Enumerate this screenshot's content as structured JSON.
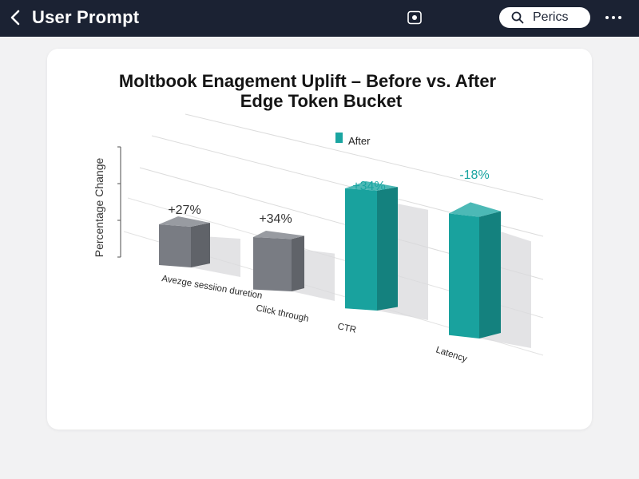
{
  "topbar": {
    "title": "User Prompt",
    "search_label": "Perics",
    "back_icon": "chevron-left-icon",
    "record_icon": "record-icon",
    "more_icon": "more-horizontal-icon"
  },
  "chart_data": {
    "type": "bar",
    "title": "Moltbook Enagement Uplift – Before vs.  After",
    "subtitle": "Edge Token Bucket",
    "ylabel": "Percentage Change",
    "legend": [
      {
        "name": "After",
        "color": "#1aa5a1"
      }
    ],
    "legend_position": "top-center",
    "categories": [
      "Avezge sessiion duretion",
      "Click through",
      "CTR",
      "Latency"
    ],
    "series": [
      {
        "color": "#7b7f86",
        "values": [
          27,
          34,
          null,
          null
        ]
      },
      {
        "name": "After",
        "color": "#1aa5a1",
        "values": [
          null,
          null,
          34,
          -18
        ]
      }
    ],
    "data_labels": [
      "+27%",
      "+34%",
      "+34%",
      "-18%"
    ],
    "style": "3d",
    "grid": true
  }
}
